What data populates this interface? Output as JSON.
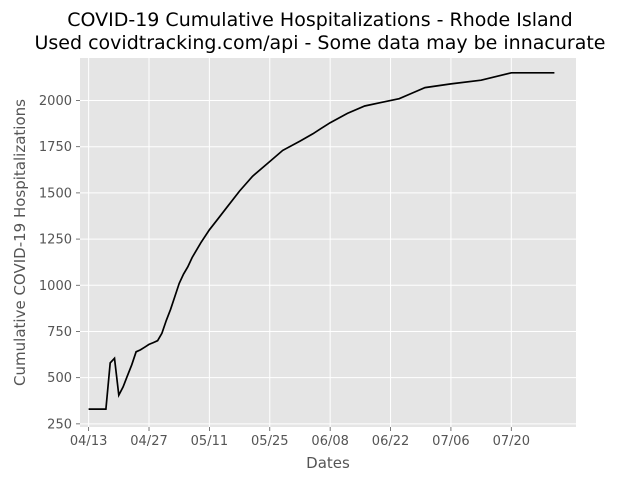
{
  "chart_data": {
    "type": "line",
    "title": "COVID-19 Cumulative Hospitalizations - Rhode Island",
    "subtitle": "Used covidtracking.com/api - Some data may be innacurate",
    "xlabel": "Dates",
    "ylabel": "Cumulative COVID-19 Hospitalizations",
    "x_tick_labels": [
      "04/13",
      "04/27",
      "05/11",
      "05/25",
      "06/08",
      "06/22",
      "07/06",
      "07/20"
    ],
    "x_tick_dates": [
      "2020-04-13",
      "2020-04-27",
      "2020-05-11",
      "2020-05-25",
      "2020-06-08",
      "2020-06-22",
      "2020-07-06",
      "2020-07-20"
    ],
    "y_ticks": [
      250,
      500,
      750,
      1000,
      1250,
      1500,
      1750,
      2000
    ],
    "xlim": [
      "2020-04-11",
      "2020-08-04"
    ],
    "ylim": [
      233,
      2230
    ],
    "grid": true,
    "line_color": "#000000",
    "background_color": "#e5e5e5",
    "grid_color": "#ffffff",
    "series": [
      {
        "x": [
          "2020-04-13",
          "2020-04-17",
          "2020-04-18",
          "2020-04-19",
          "2020-04-20",
          "2020-04-21",
          "2020-04-22",
          "2020-04-23",
          "2020-04-24",
          "2020-04-25",
          "2020-04-26",
          "2020-04-27",
          "2020-04-28",
          "2020-04-29",
          "2020-04-30",
          "2020-05-01",
          "2020-05-02",
          "2020-05-03",
          "2020-05-04",
          "2020-05-05",
          "2020-05-06",
          "2020-05-07",
          "2020-05-09",
          "2020-05-11",
          "2020-05-13",
          "2020-05-15",
          "2020-05-18",
          "2020-05-21",
          "2020-05-25",
          "2020-05-28",
          "2020-06-01",
          "2020-06-04",
          "2020-06-06",
          "2020-06-08",
          "2020-06-12",
          "2020-06-16",
          "2020-06-20",
          "2020-06-24",
          "2020-06-27",
          "2020-06-30",
          "2020-07-06",
          "2020-07-13",
          "2020-07-20",
          "2020-07-24",
          "2020-07-28",
          "2020-07-30"
        ],
        "values": [
          330,
          330,
          580,
          605,
          405,
          450,
          510,
          570,
          640,
          650,
          665,
          680,
          690,
          700,
          740,
          810,
          870,
          940,
          1010,
          1060,
          1100,
          1150,
          1230,
          1300,
          1360,
          1420,
          1510,
          1590,
          1670,
          1730,
          1780,
          1820,
          1850,
          1880,
          1930,
          1970,
          1990,
          2010,
          2040,
          2070,
          2090,
          2110,
          2150,
          2150,
          2150,
          2150
        ]
      }
    ]
  }
}
